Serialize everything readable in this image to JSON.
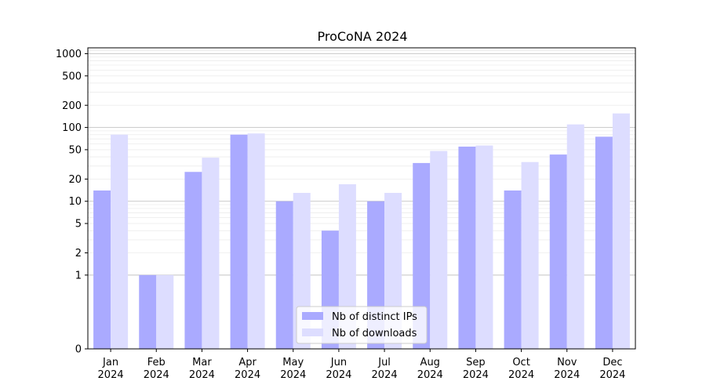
{
  "chart_data": {
    "type": "bar",
    "title": "ProCoNA 2024",
    "xlabel": "",
    "ylabel": "",
    "yscale": "log",
    "categories": [
      {
        "month": "Jan",
        "year": "2024"
      },
      {
        "month": "Feb",
        "year": "2024"
      },
      {
        "month": "Mar",
        "year": "2024"
      },
      {
        "month": "Apr",
        "year": "2024"
      },
      {
        "month": "May",
        "year": "2024"
      },
      {
        "month": "Jun",
        "year": "2024"
      },
      {
        "month": "Jul",
        "year": "2024"
      },
      {
        "month": "Aug",
        "year": "2024"
      },
      {
        "month": "Sep",
        "year": "2024"
      },
      {
        "month": "Oct",
        "year": "2024"
      },
      {
        "month": "Nov",
        "year": "2024"
      },
      {
        "month": "Dec",
        "year": "2024"
      }
    ],
    "series": [
      {
        "name": "Nb of distinct IPs",
        "color": "#aaaaff",
        "values": [
          14,
          1,
          25,
          80,
          10,
          4,
          10,
          33,
          55,
          14,
          43,
          75
        ]
      },
      {
        "name": "Nb of downloads",
        "color": "#ddddff",
        "values": [
          80,
          1,
          39,
          83,
          13,
          17,
          13,
          48,
          57,
          34,
          110,
          155
        ]
      }
    ],
    "ytick_labels": [
      "0",
      "1",
      "2",
      "5",
      "10",
      "20",
      "50",
      "100",
      "200",
      "500",
      "1000"
    ],
    "grid": true,
    "legend_position": "lower center"
  }
}
